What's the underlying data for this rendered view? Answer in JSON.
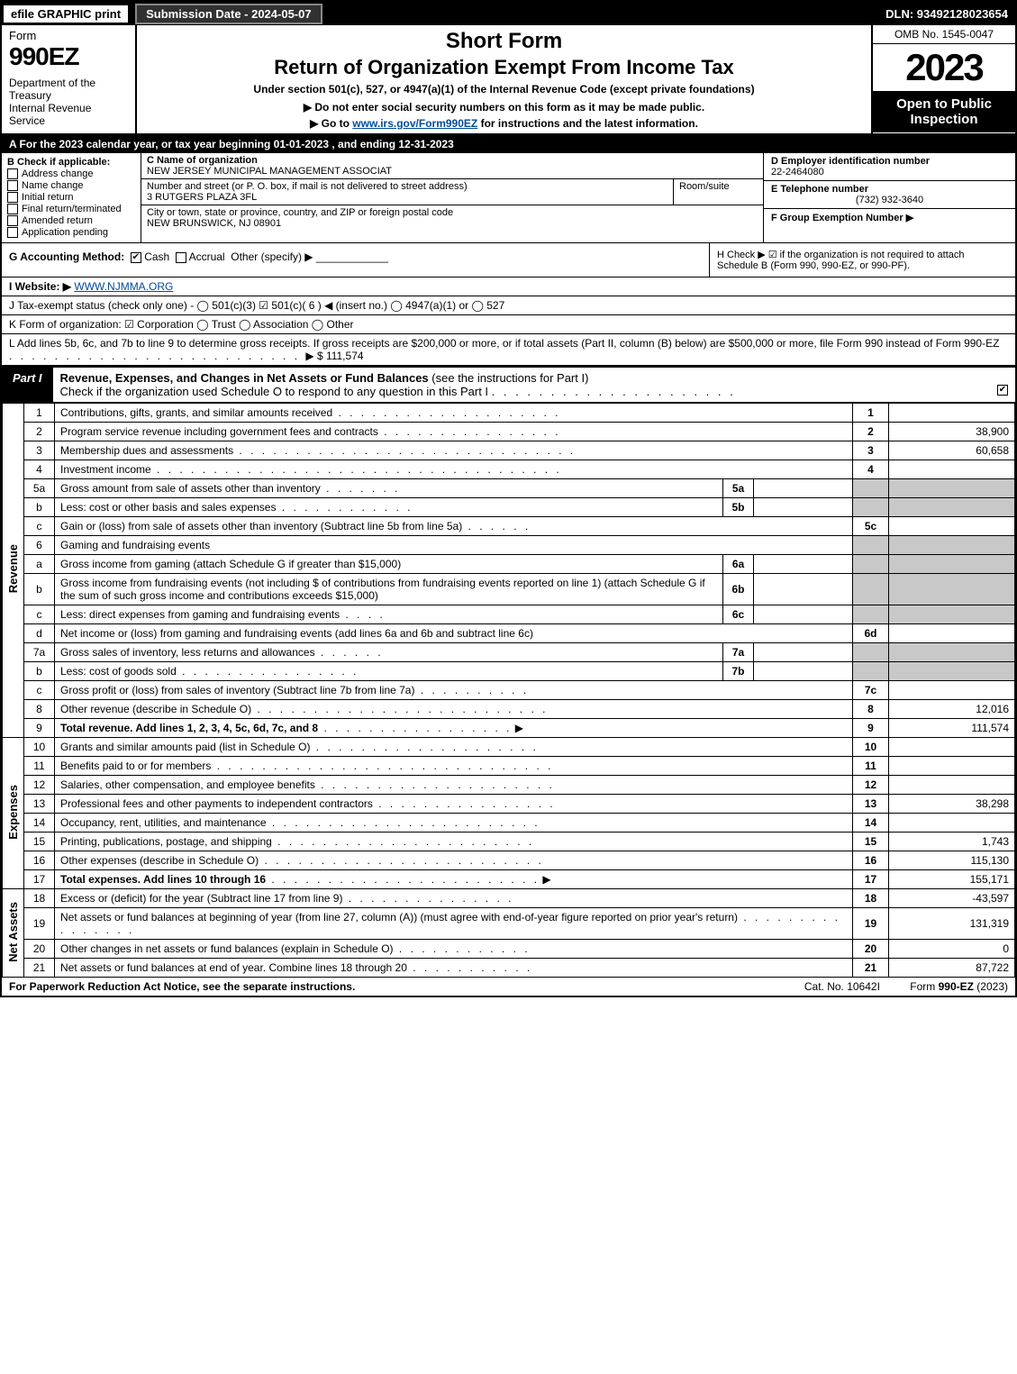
{
  "top": {
    "efile": "efile GRAPHIC print",
    "submission": "Submission Date - 2024-05-07",
    "dln": "DLN: 93492128023654"
  },
  "header": {
    "form_label": "Form",
    "form_number": "990EZ",
    "dept": "Department of the Treasury\nInternal Revenue Service",
    "short": "Short Form",
    "title": "Return of Organization Exempt From Income Tax",
    "sub1": "Under section 501(c), 527, or 4947(a)(1) of the Internal Revenue Code (except private foundations)",
    "sub2": "▶ Do not enter social security numbers on this form as it may be made public.",
    "sub3_prefix": "▶ Go to ",
    "sub3_link": "www.irs.gov/Form990EZ",
    "sub3_suffix": " for instructions and the latest information.",
    "omb": "OMB No. 1545-0047",
    "year": "2023",
    "open": "Open to Public Inspection"
  },
  "lineA": "A  For the 2023 calendar year, or tax year beginning 01-01-2023 , and ending 12-31-2023",
  "secB": {
    "title": "B  Check if applicable:",
    "items": [
      "Address change",
      "Name change",
      "Initial return",
      "Final return/terminated",
      "Amended return",
      "Application pending"
    ]
  },
  "secC": {
    "name_lbl": "C Name of organization",
    "name": "NEW JERSEY MUNICIPAL MANAGEMENT ASSOCIAT",
    "addr_lbl": "Number and street (or P. O. box, if mail is not delivered to street address)",
    "addr": "3 RUTGERS PLAZA 3FL",
    "room_lbl": "Room/suite",
    "city_lbl": "City or town, state or province, country, and ZIP or foreign postal code",
    "city": "NEW BRUNSWICK, NJ  08901"
  },
  "secD": {
    "ein_lbl": "D Employer identification number",
    "ein": "22-2464080",
    "tel_lbl": "E Telephone number",
    "tel": "(732) 932-3640",
    "grp_lbl": "F Group Exemption Number   ▶"
  },
  "rowG": {
    "label": "G Accounting Method:",
    "cash": "Cash",
    "accrual": "Accrual",
    "other": "Other (specify) ▶"
  },
  "rowH": "H  Check ▶ ☑ if the organization is not required to attach Schedule B (Form 990, 990-EZ, or 990-PF).",
  "rowI": {
    "label": "I Website: ▶",
    "link": "WWW.NJMMA.ORG"
  },
  "rowJ": "J Tax-exempt status (check only one) -  ◯ 501(c)(3)  ☑ 501(c)( 6 ) ◀ (insert no.)  ◯ 4947(a)(1) or  ◯ 527",
  "rowK": "K Form of organization:  ☑ Corporation   ◯ Trust   ◯ Association   ◯ Other",
  "rowL": {
    "text": "L Add lines 5b, 6c, and 7b to line 9 to determine gross receipts. If gross receipts are $200,000 or more, or if total assets (Part II, column (B) below) are $500,000 or more, file Form 990 instead of Form 990-EZ",
    "amount": "▶ $ 111,574"
  },
  "part1": {
    "tab": "Part I",
    "title": "Revenue, Expenses, and Changes in Net Assets or Fund Balances",
    "subtitle": "(see the instructions for Part I)",
    "check_note": "Check if the organization used Schedule O to respond to any question in this Part I"
  },
  "side_labels": {
    "revenue": "Revenue",
    "expenses": "Expenses",
    "net": "Net Assets"
  },
  "lines": {
    "l1": {
      "n": "1",
      "d": "Contributions, gifts, grants, and similar amounts received",
      "ref": "1",
      "v": ""
    },
    "l2": {
      "n": "2",
      "d": "Program service revenue including government fees and contracts",
      "ref": "2",
      "v": "38,900"
    },
    "l3": {
      "n": "3",
      "d": "Membership dues and assessments",
      "ref": "3",
      "v": "60,658"
    },
    "l4": {
      "n": "4",
      "d": "Investment income",
      "ref": "4",
      "v": ""
    },
    "l5a": {
      "n": "5a",
      "d": "Gross amount from sale of assets other than inventory",
      "mref": "5a"
    },
    "l5b": {
      "n": "b",
      "d": "Less: cost or other basis and sales expenses",
      "mref": "5b"
    },
    "l5c": {
      "n": "c",
      "d": "Gain or (loss) from sale of assets other than inventory (Subtract line 5b from line 5a)",
      "ref": "5c",
      "v": ""
    },
    "l6": {
      "n": "6",
      "d": "Gaming and fundraising events"
    },
    "l6a": {
      "n": "a",
      "d": "Gross income from gaming (attach Schedule G if greater than $15,000)",
      "mref": "6a"
    },
    "l6b": {
      "n": "b",
      "d": "Gross income from fundraising events (not including $                    of contributions from fundraising events reported on line 1) (attach Schedule G if the sum of such gross income and contributions exceeds $15,000)",
      "mref": "6b"
    },
    "l6c": {
      "n": "c",
      "d": "Less: direct expenses from gaming and fundraising events",
      "mref": "6c"
    },
    "l6d": {
      "n": "d",
      "d": "Net income or (loss) from gaming and fundraising events (add lines 6a and 6b and subtract line 6c)",
      "ref": "6d",
      "v": ""
    },
    "l7a": {
      "n": "7a",
      "d": "Gross sales of inventory, less returns and allowances",
      "mref": "7a"
    },
    "l7b": {
      "n": "b",
      "d": "Less: cost of goods sold",
      "mref": "7b"
    },
    "l7c": {
      "n": "c",
      "d": "Gross profit or (loss) from sales of inventory (Subtract line 7b from line 7a)",
      "ref": "7c",
      "v": ""
    },
    "l8": {
      "n": "8",
      "d": "Other revenue (describe in Schedule O)",
      "ref": "8",
      "v": "12,016"
    },
    "l9": {
      "n": "9",
      "d": "Total revenue. Add lines 1, 2, 3, 4, 5c, 6d, 7c, and 8",
      "ref": "9",
      "v": "111,574",
      "bold": true
    },
    "l10": {
      "n": "10",
      "d": "Grants and similar amounts paid (list in Schedule O)",
      "ref": "10",
      "v": ""
    },
    "l11": {
      "n": "11",
      "d": "Benefits paid to or for members",
      "ref": "11",
      "v": ""
    },
    "l12": {
      "n": "12",
      "d": "Salaries, other compensation, and employee benefits",
      "ref": "12",
      "v": ""
    },
    "l13": {
      "n": "13",
      "d": "Professional fees and other payments to independent contractors",
      "ref": "13",
      "v": "38,298"
    },
    "l14": {
      "n": "14",
      "d": "Occupancy, rent, utilities, and maintenance",
      "ref": "14",
      "v": ""
    },
    "l15": {
      "n": "15",
      "d": "Printing, publications, postage, and shipping",
      "ref": "15",
      "v": "1,743"
    },
    "l16": {
      "n": "16",
      "d": "Other expenses (describe in Schedule O)",
      "ref": "16",
      "v": "115,130"
    },
    "l17": {
      "n": "17",
      "d": "Total expenses. Add lines 10 through 16",
      "ref": "17",
      "v": "155,171",
      "bold": true
    },
    "l18": {
      "n": "18",
      "d": "Excess or (deficit) for the year (Subtract line 17 from line 9)",
      "ref": "18",
      "v": "-43,597"
    },
    "l19": {
      "n": "19",
      "d": "Net assets or fund balances at beginning of year (from line 27, column (A)) (must agree with end-of-year figure reported on prior year's return)",
      "ref": "19",
      "v": "131,319"
    },
    "l20": {
      "n": "20",
      "d": "Other changes in net assets or fund balances (explain in Schedule O)",
      "ref": "20",
      "v": "0"
    },
    "l21": {
      "n": "21",
      "d": "Net assets or fund balances at end of year. Combine lines 18 through 20",
      "ref": "21",
      "v": "87,722"
    }
  },
  "footer": {
    "left": "For Paperwork Reduction Act Notice, see the separate instructions.",
    "mid": "Cat. No. 10642I",
    "right": "Form 990-EZ (2023)"
  }
}
